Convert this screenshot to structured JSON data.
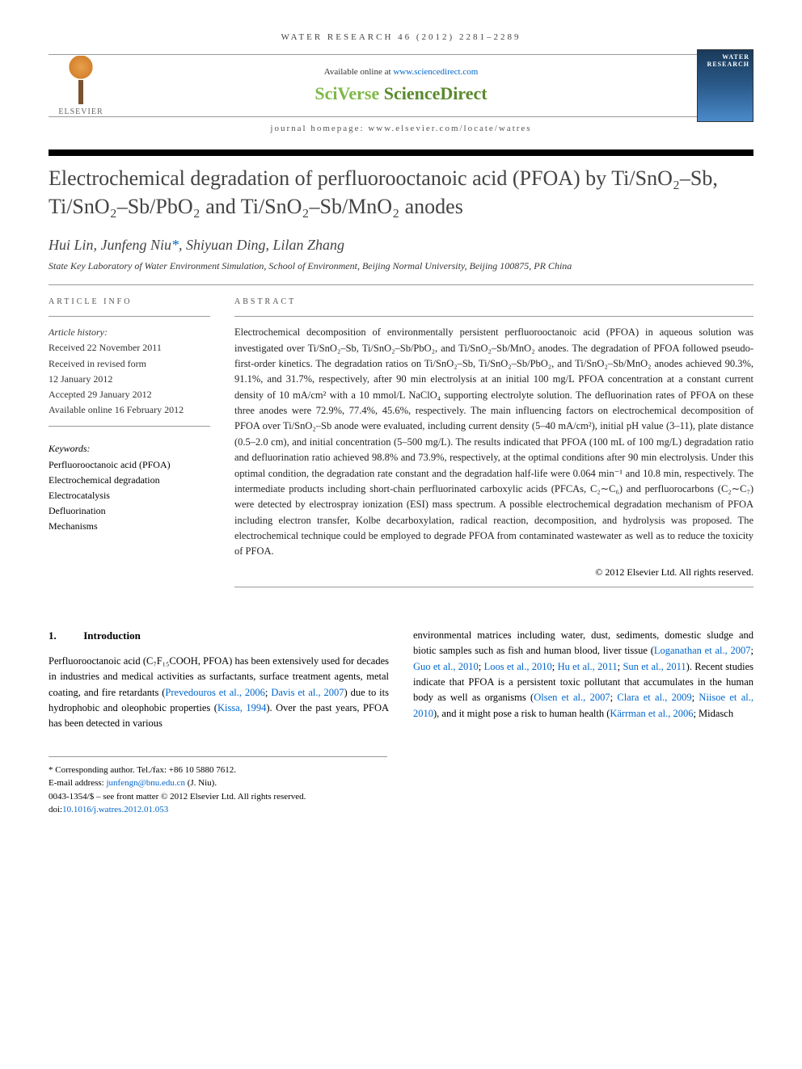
{
  "journal_ref": {
    "name": "WATER RESEARCH",
    "vol": "46",
    "year": "(2012)",
    "pages": "2281–2289"
  },
  "banner": {
    "elsevier": "ELSEVIER",
    "available_prefix": "Available online at ",
    "available_link": "www.sciencedirect.com",
    "sciverse": "SciVerse ",
    "sciencedirect": "ScienceDirect",
    "homepage_prefix": "journal homepage: ",
    "homepage_url": "www.elsevier.com/locate/watres",
    "cover_label": "WATER RESEARCH"
  },
  "title": "Electrochemical degradation of perfluorooctanoic acid (PFOA) by Ti/SnO₂–Sb, Ti/SnO₂–Sb/PbO₂ and Ti/SnO₂–Sb/MnO₂ anodes",
  "authors": "Hui Lin, Junfeng Niu*, Shiyuan Ding, Lilan Zhang",
  "affiliation": "State Key Laboratory of Water Environment Simulation, School of Environment, Beijing Normal University, Beijing 100875, PR China",
  "article_info": {
    "header": "ARTICLE INFO",
    "history_label": "Article history:",
    "received": "Received 22 November 2011",
    "revised_label": "Received in revised form",
    "revised_date": "12 January 2012",
    "accepted": "Accepted 29 January 2012",
    "online": "Available online 16 February 2012",
    "keywords_label": "Keywords:",
    "keywords": [
      "Perfluorooctanoic acid (PFOA)",
      "Electrochemical degradation",
      "Electrocatalysis",
      "Defluorination",
      "Mechanisms"
    ]
  },
  "abstract": {
    "header": "ABSTRACT",
    "text": "Electrochemical decomposition of environmentally persistent perfluorooctanoic acid (PFOA) in aqueous solution was investigated over Ti/SnO₂–Sb, Ti/SnO₂–Sb/PbO₂, and Ti/SnO₂–Sb/MnO₂ anodes. The degradation of PFOA followed pseudo-first-order kinetics. The degradation ratios on Ti/SnO₂–Sb, Ti/SnO₂–Sb/PbO₂, and Ti/SnO₂–Sb/MnO₂ anodes achieved 90.3%, 91.1%, and 31.7%, respectively, after 90 min electrolysis at an initial 100 mg/L PFOA concentration at a constant current density of 10 mA/cm² with a 10 mmol/L NaClO₄ supporting electrolyte solution. The defluorination rates of PFOA on these three anodes were 72.9%, 77.4%, 45.6%, respectively. The main influencing factors on electrochemical decomposition of PFOA over Ti/SnO₂–Sb anode were evaluated, including current density (5–40 mA/cm²), initial pH value (3–11), plate distance (0.5–2.0 cm), and initial concentration (5–500 mg/L). The results indicated that PFOA (100 mL of 100 mg/L) degradation ratio and defluorination ratio achieved 98.8% and 73.9%, respectively, at the optimal conditions after 90 min electrolysis. Under this optimal condition, the degradation rate constant and the degradation half-life were 0.064 min⁻¹ and 10.8 min, respectively. The intermediate products including short-chain perfluorinated carboxylic acids (PFCAs, C₂∼C₆) and perfluorocarbons (C₂∼C₇) were detected by electrospray ionization (ESI) mass spectrum. A possible electrochemical degradation mechanism of PFOA including electron transfer, Kolbe decarboxylation, radical reaction, decomposition, and hydrolysis was proposed. The electrochemical technique could be employed to degrade PFOA from contaminated wastewater as well as to reduce the toxicity of PFOA.",
    "copyright": "© 2012 Elsevier Ltd. All rights reserved."
  },
  "intro": {
    "heading_num": "1.",
    "heading_text": "Introduction",
    "col1": "Perfluorooctanoic acid (C₇F₁₅COOH, PFOA) has been extensively used for decades in industries and medical activities as surfactants, surface treatment agents, metal coating, and fire retardants (Prevedouros et al., 2006; Davis et al., 2007) due to its hydrophobic and oleophobic properties (Kissa, 1994). Over the past years, PFOA has been detected in various",
    "col2": "environmental matrices including water, dust, sediments, domestic sludge and biotic samples such as fish and human blood, liver tissue (Loganathan et al., 2007; Guo et al., 2010; Loos et al., 2010; Hu et al., 2011; Sun et al., 2011). Recent studies indicate that PFOA is a persistent toxic pollutant that accumulates in the human body as well as organisms (Olsen et al., 2007; Clara et al., 2009; Niisoe et al., 2010), and it might pose a risk to human health (Kärrman et al., 2006; Midasch",
    "refs_col1": [
      "Prevedouros et al., 2006",
      "Davis et al., 2007",
      "Kissa, 1994"
    ],
    "refs_col2": [
      "Loganathan et al., 2007",
      "Guo et al., 2010",
      "Loos et al., 2010",
      "Hu et al., 2011",
      "Sun et al., 2011",
      "Olsen et al., 2007",
      "Clara et al., 2009",
      "Niisoe et al., 2010",
      "Kärrman et al., 2006"
    ]
  },
  "footer": {
    "corr_label": "* Corresponding author.",
    "tel": "Tel./fax: +86 10 5880 7612.",
    "email_label": "E-mail address: ",
    "email": "junfengn@bnu.edu.cn",
    "email_suffix": " (J. Niu).",
    "issn": "0043-1354/$ – see front matter © 2012 Elsevier Ltd. All rights reserved.",
    "doi_label": "doi:",
    "doi": "10.1016/j.watres.2012.01.053"
  },
  "colors": {
    "link": "#0066cc",
    "sciverse_green": "#7fb848",
    "sd_green": "#5a8a2e",
    "text": "#222222",
    "heading": "#444444"
  }
}
